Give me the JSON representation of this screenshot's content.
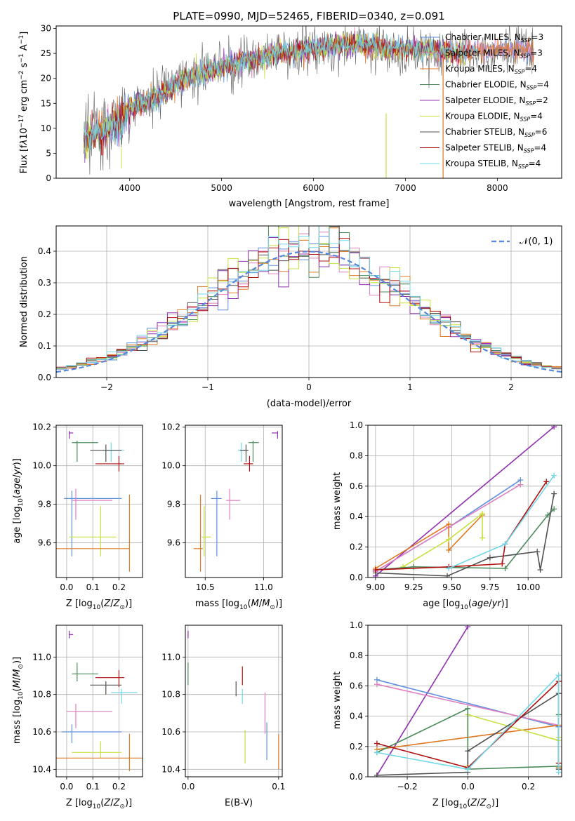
{
  "colors": {
    "Chabrier MILES": "#3cb4c0",
    "Salpeter MILES": "#e080c0",
    "Kroupa MILES": "#e07820",
    "Chabrier ELODIE": "#4a8a5a",
    "Salpeter ELODIE": "#9030b0",
    "Kroupa ELODIE": "#c8e040",
    "Chabrier STELIB": "#505050",
    "Salpeter STELIB": "#b01010",
    "Kroupa STELIB": "#70d8e8",
    "Chabrier MILES blue": "#6090e0",
    "grid": "#b0b0b0"
  },
  "chart_data": [
    {
      "type": "line",
      "title": "PLATE=0990, MJD=52465, FIBERID=0340, z=0.091",
      "xlabel": "wavelength [Angstrom, rest frame]",
      "ylabel": "Flux [f_λ10^-17 erg cm^-2 s^-1 A^-1]",
      "xlim": [
        3200,
        8700
      ],
      "ylim": [
        0,
        30.5
      ],
      "xticks": [
        "4000",
        "5000",
        "6000",
        "7000",
        "8000"
      ],
      "yticks": [
        "0",
        "5",
        "10",
        "15",
        "20",
        "25",
        "30"
      ],
      "grid": false,
      "legend": "top-right",
      "legend_entries": [
        {
          "label": "Chabrier MILES, N_SSP=3",
          "color": "#6090e0"
        },
        {
          "label": "Salpeter MILES, N_SSP=3",
          "color": "#e080c0"
        },
        {
          "label": "Kroupa MILES, N_SSP=4",
          "color": "#e07820"
        },
        {
          "label": "Chabrier ELODIE, N_SSP=4",
          "color": "#4a8a5a"
        },
        {
          "label": "Salpeter ELODIE, N_SSP=2",
          "color": "#9030b0"
        },
        {
          "label": "Kroupa ELODIE, N_SSP=4",
          "color": "#c8e040"
        },
        {
          "label": "Chabrier STELIB, N_SSP=6",
          "color": "#505050"
        },
        {
          "label": "Salpeter STELIB, N_SSP=4",
          "color": "#b01010"
        },
        {
          "label": "Kroupa STELIB, N_SSP=4",
          "color": "#70d8e8"
        }
      ],
      "continuum": {
        "x": [
          3500,
          3700,
          3900,
          4000,
          4200,
          4400,
          4600,
          4800,
          5000,
          5200,
          5400,
          5600,
          5800,
          6000,
          6200,
          6400,
          6600,
          6800,
          7000,
          7200,
          7400,
          7600,
          7800,
          8000,
          8200,
          8400
        ],
        "y": [
          8.0,
          9.5,
          11.5,
          14.0,
          15.5,
          17.5,
          20.0,
          21.0,
          22.0,
          23.5,
          24.0,
          25.0,
          25.5,
          26.0,
          26.5,
          26.8,
          26.5,
          26.0,
          25.8,
          26.0,
          25.5,
          25.0,
          25.5,
          26.0,
          25.8,
          25.5
        ]
      }
    },
    {
      "type": "line",
      "xlabel": "(data-model)/error",
      "ylabel": "Normed distribution",
      "xlim": [
        -2.5,
        2.5
      ],
      "ylim": [
        0,
        0.48
      ],
      "xticks": [
        "−2",
        "−1",
        "0",
        "1",
        "2"
      ],
      "yticks": [
        "0.0",
        "0.1",
        "0.2",
        "0.3",
        "0.4"
      ],
      "grid": true,
      "legend": "top-right",
      "legend_entries": [
        {
          "label": "𝒩(0, 1)",
          "color": "#5588dd"
        }
      ],
      "bin_width": 0.1
    },
    {
      "type": "scatter",
      "xlabel": "Z [log10(Z/Z⊙)]",
      "ylabel": "age  [log10(age/yr)]",
      "xlim": [
        -0.04,
        0.29
      ],
      "ylim": [
        9.42,
        10.21
      ],
      "xticks": [
        "0.0",
        "0.1",
        "0.2"
      ],
      "yticks": [
        "9.6",
        "9.8",
        "10.0",
        "10.2"
      ],
      "grid": true,
      "points": [
        {
          "color": "#9030b0",
          "x": 0.01,
          "xerr": [
            0.0,
            0.015
          ],
          "y": 10.17,
          "yerr": [
            0.03,
            0.01
          ]
        },
        {
          "color": "#4a8a5a",
          "x": 0.04,
          "xerr": [
            0.02,
            0.08
          ],
          "y": 10.12,
          "yerr": [
            0.1,
            0.01
          ]
        },
        {
          "color": "#70d8e8",
          "x": 0.17,
          "xerr": [
            0.03,
            0.05
          ],
          "y": 10.08,
          "yerr": [
            0.06,
            0.04
          ]
        },
        {
          "color": "#505050",
          "x": 0.15,
          "xerr": [
            0.06,
            0.06
          ],
          "y": 10.08,
          "yerr": [
            0.06,
            0.03
          ]
        },
        {
          "color": "#b01010",
          "x": 0.2,
          "xerr": [
            0.09,
            0.02
          ],
          "y": 10.01,
          "yerr": [
            0.04,
            0.04
          ]
        },
        {
          "color": "#6090e0",
          "x": 0.02,
          "xerr": [
            0.03,
            0.19
          ],
          "y": 9.83,
          "yerr": [
            0.3,
            0.04
          ]
        },
        {
          "color": "#e080c0",
          "x": 0.035,
          "xerr": [
            0.015,
            0.14
          ],
          "y": 9.82,
          "yerr": [
            0.1,
            0.06
          ]
        },
        {
          "color": "#c8e040",
          "x": 0.13,
          "xerr": [
            0.12,
            0.06
          ],
          "y": 9.63,
          "yerr": [
            0.1,
            0.16
          ]
        },
        {
          "color": "#e07820",
          "x": 0.24,
          "xerr": [
            0.28,
            0.0
          ],
          "y": 9.57,
          "yerr": [
            0.12,
            0.28
          ]
        }
      ]
    },
    {
      "type": "scatter",
      "xlabel": "mass [log10(M/M⊙)]",
      "xlim": [
        10.33,
        11.16
      ],
      "ylim": [
        9.42,
        10.21
      ],
      "xticks": [
        "10.5",
        "11.0"
      ],
      "yticks": [
        "9.6",
        "9.8",
        "10.0",
        "10.2"
      ],
      "grid": true,
      "points": [
        {
          "color": "#9030b0",
          "x": 11.12,
          "xerr": [
            0.05,
            0.0
          ],
          "y": 10.17,
          "yerr": [
            0.03,
            0.01
          ]
        },
        {
          "color": "#4a8a5a",
          "x": 10.91,
          "xerr": [
            0.04,
            0.05
          ],
          "y": 10.12,
          "yerr": [
            0.1,
            0.01
          ]
        },
        {
          "color": "#70d8e8",
          "x": 10.81,
          "xerr": [
            0.03,
            0.04
          ],
          "y": 10.08,
          "yerr": [
            0.06,
            0.04
          ]
        },
        {
          "color": "#505050",
          "x": 10.85,
          "xerr": [
            0.05,
            0.02
          ],
          "y": 10.08,
          "yerr": [
            0.06,
            0.03
          ]
        },
        {
          "color": "#b01010",
          "x": 10.88,
          "xerr": [
            0.05,
            0.03
          ],
          "y": 10.01,
          "yerr": [
            0.04,
            0.04
          ]
        },
        {
          "color": "#6090e0",
          "x": 10.6,
          "xerr": [
            0.05,
            0.04
          ],
          "y": 9.83,
          "yerr": [
            0.3,
            0.04
          ]
        },
        {
          "color": "#e080c0",
          "x": 10.71,
          "xerr": [
            0.03,
            0.09
          ],
          "y": 9.82,
          "yerr": [
            0.1,
            0.06
          ]
        },
        {
          "color": "#c8e040",
          "x": 10.49,
          "xerr": [
            0.02,
            0.06
          ],
          "y": 9.63,
          "yerr": [
            0.1,
            0.16
          ]
        },
        {
          "color": "#e07820",
          "x": 10.46,
          "xerr": [
            0.06,
            0.02
          ],
          "y": 9.57,
          "yerr": [
            0.12,
            0.28
          ]
        }
      ]
    },
    {
      "type": "line",
      "xlabel": "age  [log10(age/yr)]",
      "ylabel": "mass weight",
      "xlim": [
        8.95,
        10.22
      ],
      "ylim": [
        0,
        1.0
      ],
      "xticks": [
        "9.00",
        "9.25",
        "9.50",
        "9.75",
        "10.00"
      ],
      "yticks": [
        "0.0",
        "0.2",
        "0.4",
        "0.6",
        "0.8",
        "1.0"
      ],
      "grid": true,
      "series": [
        {
          "color": "#9030b0",
          "x": [
            9.0,
            10.17
          ],
          "y": [
            0.01,
            0.99
          ]
        },
        {
          "color": "#6090e0",
          "x": [
            9.0,
            9.48,
            9.95
          ],
          "y": [
            0.04,
            0.33,
            0.64
          ]
        },
        {
          "color": "#e080c0",
          "x": [
            9.0,
            9.48,
            9.95
          ],
          "y": [
            0.04,
            0.33,
            0.61
          ]
        },
        {
          "color": "#e07820",
          "x": [
            9.0,
            9.48,
            9.48,
            9.7
          ],
          "y": [
            0.06,
            0.35,
            0.18,
            0.41
          ]
        },
        {
          "color": "#c8e040",
          "x": [
            9.18,
            9.48,
            9.7,
            9.7
          ],
          "y": [
            0.07,
            0.25,
            0.42,
            0.26
          ]
        },
        {
          "color": "#4a8a5a",
          "x": [
            9.0,
            9.25,
            9.85,
            10.13,
            10.17
          ],
          "y": [
            0.05,
            0.07,
            0.06,
            0.41,
            0.45
          ]
        },
        {
          "color": "#505050",
          "x": [
            9.0,
            9.47,
            9.75,
            10.06,
            10.08,
            10.17
          ],
          "y": [
            0.03,
            0.01,
            0.13,
            0.17,
            0.05,
            0.55
          ]
        },
        {
          "color": "#b01010",
          "x": [
            9.0,
            9.48,
            9.83,
            9.85,
            10.12
          ],
          "y": [
            0.05,
            0.07,
            0.09,
            0.22,
            0.63
          ]
        },
        {
          "color": "#70d8e8",
          "x": [
            9.48,
            9.85,
            10.17
          ],
          "y": [
            0.06,
            0.22,
            0.67
          ]
        }
      ]
    },
    {
      "type": "scatter",
      "xlabel": "Z [log10(Z/Z⊙)]",
      "ylabel": "mass [log10(M/M⊙)]",
      "xlim": [
        -0.04,
        0.29
      ],
      "ylim": [
        10.36,
        11.17
      ],
      "xticks": [
        "0.0",
        "0.1",
        "0.2"
      ],
      "yticks": [
        "10.4",
        "10.6",
        "10.8",
        "11.0"
      ],
      "grid": true,
      "points": [
        {
          "color": "#9030b0",
          "x": 0.01,
          "xerr": [
            0.0,
            0.015
          ],
          "y": 11.12,
          "yerr": [
            0.02,
            0.02
          ]
        },
        {
          "color": "#4a8a5a",
          "x": 0.04,
          "xerr": [
            0.02,
            0.08
          ],
          "y": 10.91,
          "yerr": [
            0.04,
            0.06
          ]
        },
        {
          "color": "#b01010",
          "x": 0.2,
          "xerr": [
            0.09,
            0.02
          ],
          "y": 10.89,
          "yerr": [
            0.05,
            0.04
          ]
        },
        {
          "color": "#505050",
          "x": 0.15,
          "xerr": [
            0.06,
            0.06
          ],
          "y": 10.85,
          "yerr": [
            0.05,
            0.02
          ]
        },
        {
          "color": "#70d8e8",
          "x": 0.21,
          "xerr": [
            0.04,
            0.06
          ],
          "y": 10.81,
          "yerr": [
            0.06,
            0.02
          ]
        },
        {
          "color": "#e080c0",
          "x": 0.035,
          "xerr": [
            0.035,
            0.14
          ],
          "y": 10.71,
          "yerr": [
            0.09,
            0.04
          ]
        },
        {
          "color": "#6090e0",
          "x": 0.02,
          "xerr": [
            0.04,
            0.19
          ],
          "y": 10.6,
          "yerr": [
            0.06,
            0.04
          ]
        },
        {
          "color": "#c8e040",
          "x": 0.13,
          "xerr": [
            0.11,
            0.08
          ],
          "y": 10.49,
          "yerr": [
            0.03,
            0.06
          ]
        },
        {
          "color": "#e07820",
          "x": 0.24,
          "xerr": [
            0.28,
            0.05
          ],
          "y": 10.46,
          "yerr": [
            0.07,
            0.13
          ]
        }
      ]
    },
    {
      "type": "scatter",
      "xlabel": "E(B-V)",
      "xlim": [
        -0.003,
        0.104
      ],
      "ylim": [
        10.36,
        11.17
      ],
      "xticks": [
        "0.0",
        "0.1"
      ],
      "yticks": [
        "10.4",
        "10.6",
        "10.8",
        "11.0"
      ],
      "grid": true,
      "points": [
        {
          "color": "#9030b0",
          "x": 0.0,
          "y": 11.12,
          "yerr": [
            0.02,
            0.02
          ]
        },
        {
          "color": "#4a8a5a",
          "x": 0.0,
          "y": 10.91,
          "yerr": [
            0.06,
            0.06
          ]
        },
        {
          "color": "#b01010",
          "x": 0.06,
          "y": 10.89,
          "yerr": [
            0.04,
            0.06
          ]
        },
        {
          "color": "#505050",
          "x": 0.053,
          "y": 10.85,
          "yerr": [
            0.06,
            0.02
          ]
        },
        {
          "color": "#70d8e8",
          "x": 0.06,
          "y": 10.81,
          "yerr": [
            0.06,
            0.02
          ]
        },
        {
          "color": "#e080c0",
          "x": 0.085,
          "y": 10.71,
          "yerr": [
            0.12,
            0.1
          ]
        },
        {
          "color": "#6090e0",
          "x": 0.087,
          "y": 10.6,
          "yerr": [
            0.15,
            0.05
          ]
        },
        {
          "color": "#c8e040",
          "x": 0.063,
          "y": 10.49,
          "yerr": [
            0.06,
            0.12
          ]
        },
        {
          "color": "#e07820",
          "x": 0.1,
          "y": 10.46,
          "yerr": [
            0.06,
            0.13
          ]
        }
      ]
    },
    {
      "type": "line",
      "xlabel": "Z [log10(Z/Z⊙)]",
      "ylabel": "mass weight",
      "xlim": [
        -0.33,
        0.31
      ],
      "ylim": [
        0,
        1.0
      ],
      "xticks": [
        "−0.2",
        "0.0",
        "0.2"
      ],
      "yticks": [
        "0.0",
        "0.2",
        "0.4",
        "0.6",
        "0.8",
        "1.0"
      ],
      "grid": true,
      "series": [
        {
          "color": "#9030b0",
          "x": [
            -0.3,
            0.0
          ],
          "y": [
            0.01,
            0.99
          ]
        },
        {
          "color": "#6090e0",
          "x": [
            -0.3,
            0.3
          ],
          "y": [
            0.64,
            0.33
          ]
        },
        {
          "color": "#e080c0",
          "x": [
            -0.3,
            0.3
          ],
          "y": [
            0.61,
            0.34
          ]
        },
        {
          "color": "#e07820",
          "x": [
            -0.3,
            0.0,
            0.3,
            0.3
          ],
          "y": [
            0.18,
            0.26,
            0.34,
            0.06
          ]
        },
        {
          "color": "#c8e040",
          "x": [
            0.0,
            0.0,
            0.3,
            0.3
          ],
          "y": [
            0.07,
            0.41,
            0.24,
            0.26
          ]
        },
        {
          "color": "#4a8a5a",
          "x": [
            -0.3,
            0.0,
            0.0,
            0.3,
            0.3
          ],
          "y": [
            0.16,
            0.45,
            0.05,
            0.07,
            0.41
          ]
        },
        {
          "color": "#505050",
          "x": [
            -0.3,
            0.0,
            0.0,
            0.3,
            0.3
          ],
          "y": [
            0.01,
            0.03,
            0.17,
            0.55,
            0.05
          ]
        },
        {
          "color": "#b01010",
          "x": [
            -0.3,
            0.0,
            0.3,
            0.3
          ],
          "y": [
            0.22,
            0.06,
            0.63,
            0.09
          ]
        },
        {
          "color": "#70d8e8",
          "x": [
            -0.3,
            0.0,
            0.3,
            0.3
          ],
          "y": [
            0.16,
            0.05,
            0.67,
            0.03
          ]
        }
      ]
    }
  ]
}
